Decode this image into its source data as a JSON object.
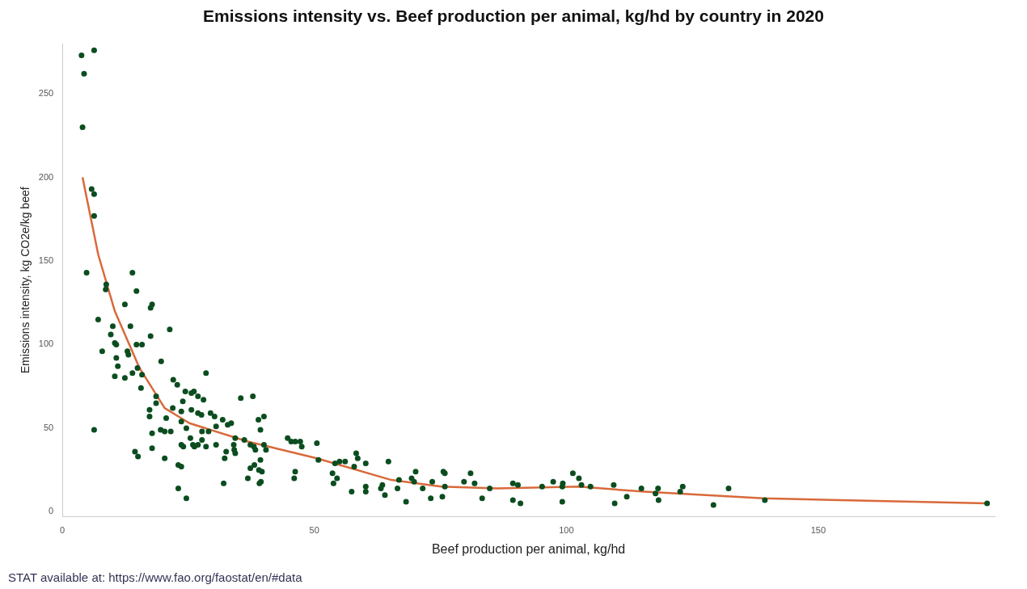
{
  "chart_data": {
    "type": "scatter",
    "title": "Emissions intensity vs. Beef production per animal, kg/hd by country in 2020",
    "xlabel": "Beef production per animal, kg/hd",
    "ylabel": "Emissions intensity, kg CO2e/kg beef",
    "xlim": [
      0,
      185
    ],
    "ylim": [
      -3,
      280
    ],
    "xticks": [
      0,
      50,
      100,
      150
    ],
    "yticks": [
      0,
      50,
      100,
      150,
      200,
      250
    ],
    "grid": false,
    "legend": false,
    "marker": "circle",
    "annotations": [
      "STAT available at: https://www.fao.org/faostat/en/#data"
    ],
    "series": [
      {
        "color": "#0b4d1f",
        "x": [
          3.8,
          6.3,
          4.3,
          4,
          5.8,
          6.3,
          6.3,
          4.8,
          13.9,
          8.7,
          14.7,
          8.6,
          7.1,
          12.4,
          17.8,
          17.5,
          21.3,
          13.5,
          9.6,
          10,
          10.4,
          10.7,
          17.5,
          15.8,
          14.7,
          7.9,
          12.9,
          13.1,
          19.6,
          10.7,
          11,
          14.9,
          15.8,
          10.4,
          12.4,
          13.9,
          28.5,
          22,
          15.6,
          22.8,
          18.6,
          24.4,
          26.1,
          25.6,
          26.9,
          18.6,
          23.9,
          17.3,
          17.3,
          21.9,
          25.6,
          28,
          23.6,
          26.9,
          20.6,
          23.6,
          27.6,
          29.4,
          30.2,
          31.8,
          32.8,
          33.5,
          37.8,
          35.4,
          40,
          38.9,
          19.5,
          20.3,
          24.6,
          6.3,
          21.5,
          17.8,
          27.7,
          29,
          30.5,
          34.3,
          36.1,
          25.4,
          23.6,
          25.9,
          27.7,
          26.2,
          26.9,
          24,
          28.5,
          17.8,
          30.5,
          34,
          37.3,
          38.3,
          40,
          32.5,
          34.1,
          34.3,
          37.3,
          39.3,
          39,
          14.4,
          15,
          20.3,
          23,
          23.6,
          32.2,
          38.1,
          23,
          24.6,
          32,
          39.4,
          36.8,
          39.3,
          38,
          40.4,
          39.6,
          39.1,
          44.7,
          45.4,
          46.2,
          47.2,
          47.5,
          50.5,
          46.2,
          46,
          50.8,
          53.6,
          54.5,
          53.8,
          54.1,
          55,
          56.1,
          58.3,
          58.6,
          57.9,
          60.2,
          57.4,
          60.2,
          60.2,
          63.2,
          63.5,
          64,
          64.7,
          66.8,
          66.5,
          68.2,
          69.3,
          70.1,
          69.8,
          71.5,
          73.1,
          73.4,
          75.6,
          75.9,
          75.4,
          75.9,
          79.7,
          81,
          81.8,
          83.3,
          84.8,
          89.4,
          90.4,
          89.4,
          90.9,
          95.2,
          97.4,
          99.3,
          99.2,
          99.2,
          101.3,
          102.5,
          103,
          104.8,
          109.4,
          109.6,
          112,
          114.9,
          118.2,
          117.7,
          118.3,
          123.1,
          122.6,
          129.2,
          132.2,
          139.4,
          183.5
        ],
        "values": [
          273,
          276,
          262,
          230,
          193,
          190,
          177,
          143,
          143,
          136,
          132,
          133,
          115,
          124,
          124,
          122,
          109,
          111,
          106,
          111,
          101,
          100,
          105,
          100,
          100,
          96,
          96,
          94,
          90,
          92,
          87,
          86,
          82,
          81,
          80,
          83,
          83,
          79,
          74,
          76,
          69,
          72,
          72,
          71,
          69,
          65,
          66,
          61,
          57,
          62,
          61,
          67,
          60,
          59,
          56,
          54,
          58,
          59,
          57,
          55,
          52,
          53,
          69,
          68,
          57,
          55,
          49,
          48,
          50,
          49,
          48,
          47,
          48,
          48,
          51,
          44,
          43,
          44,
          40,
          40,
          43,
          39,
          40,
          39,
          39,
          38,
          40,
          40,
          40,
          37,
          40,
          36,
          37,
          35,
          26,
          31,
          25,
          36,
          33,
          32,
          28,
          27,
          32,
          28,
          14,
          8,
          17,
          18,
          20,
          49,
          39,
          37,
          24,
          17,
          44,
          42,
          42,
          42,
          39,
          41,
          24,
          20,
          31,
          23,
          20,
          17,
          29,
          30,
          30,
          35,
          32,
          27,
          29,
          12,
          15,
          12,
          14,
          16,
          10,
          30,
          19,
          14,
          6,
          20,
          24,
          18,
          14,
          8,
          18,
          24,
          23,
          9,
          15,
          18,
          23,
          17,
          8,
          14,
          17,
          16,
          7,
          5,
          15,
          18,
          17,
          15,
          6,
          23,
          20,
          16,
          15,
          16,
          5,
          9,
          14,
          14,
          11,
          7,
          15,
          12,
          4,
          14,
          7,
          5
        ]
      },
      {
        "type": "line",
        "color": "#d9693b",
        "marker": "none",
        "x": [
          4,
          7.1,
          10.4,
          15.3,
          20.3,
          25.2,
          36.8,
          50.5,
          65.3,
          75.2,
          86.3,
          102.5,
          115.5,
          139.1,
          183.5
        ],
        "values": [
          200,
          154,
          120,
          86,
          62,
          53,
          42,
          32,
          19,
          15,
          14,
          15,
          12,
          8,
          5
        ]
      }
    ]
  }
}
